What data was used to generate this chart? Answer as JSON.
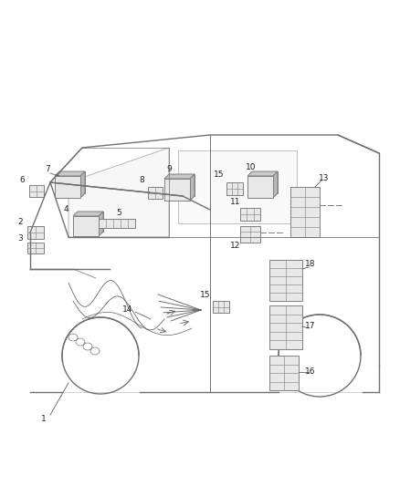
{
  "background_color": "#ffffff",
  "figsize": [
    4.38,
    5.33
  ],
  "dpi": 100,
  "van_color": "#707070",
  "wire_color": "#606060",
  "component_color": "#808080",
  "component_fill": "#e8e8e8",
  "component_fill_dark": "#d0d0d0",
  "text_color": "#202020",
  "van_lw": 1.0,
  "wire_lw": 0.7,
  "comp_lw": 0.7,
  "label_fs": 6.5
}
